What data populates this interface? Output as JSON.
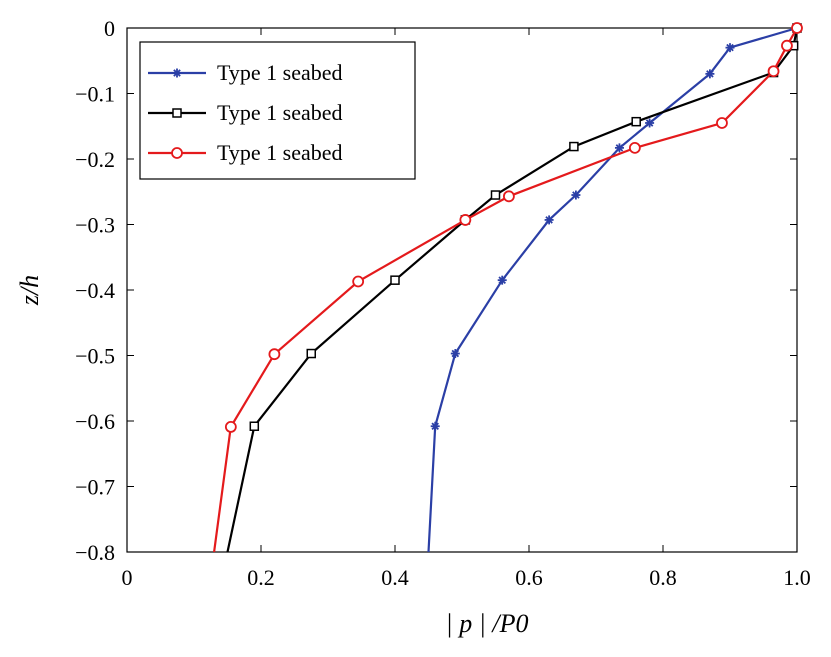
{
  "chart_data": {
    "type": "line",
    "xlabel": "| p | /P0",
    "ylabel": "z/h",
    "xlim": [
      0,
      1.0
    ],
    "ylim": [
      -0.8,
      0
    ],
    "x_ticks": [
      0,
      0.2,
      0.4,
      0.6,
      0.8,
      1.0
    ],
    "x_tick_labels": [
      "0",
      "0.2",
      "0.4",
      "0.6",
      "0.8",
      "1.0"
    ],
    "y_ticks": [
      0,
      -0.1,
      -0.2,
      -0.3,
      -0.4,
      -0.5,
      -0.6,
      -0.7,
      -0.8
    ],
    "y_tick_labels": [
      "0",
      "−0.1",
      "−0.2",
      "−0.3",
      "−0.4",
      "−0.5",
      "−0.6",
      "−0.7",
      "−0.8"
    ],
    "grid": false,
    "legend_position": "top-left",
    "series": [
      {
        "name": "Type 1 seabed",
        "color": "#2b3fa6",
        "marker": "asterisk",
        "x": [
          1.0,
          0.9,
          0.87,
          0.78,
          0.735,
          0.67,
          0.63,
          0.56,
          0.49,
          0.46,
          0.45
        ],
        "y": [
          0,
          -0.03,
          -0.07,
          -0.145,
          -0.183,
          -0.255,
          -0.293,
          -0.385,
          -0.497,
          -0.608,
          -0.8
        ],
        "markers": [
          true,
          true,
          true,
          true,
          true,
          true,
          true,
          true,
          true,
          true,
          false
        ]
      },
      {
        "name": "Type 1 seabed",
        "color": "#000000",
        "marker": "square",
        "x": [
          1.0,
          0.995,
          0.965,
          0.76,
          0.667,
          0.55,
          0.505,
          0.4,
          0.275,
          0.19,
          0.15
        ],
        "y": [
          0,
          -0.027,
          -0.068,
          -0.143,
          -0.181,
          -0.255,
          -0.293,
          -0.385,
          -0.497,
          -0.608,
          -0.8
        ],
        "markers": [
          true,
          true,
          true,
          true,
          true,
          true,
          true,
          true,
          true,
          true,
          false
        ]
      },
      {
        "name": "Type 1 seabed",
        "color": "#e41a1c",
        "marker": "circle",
        "x": [
          1.0,
          0.985,
          0.965,
          0.888,
          0.758,
          0.57,
          0.505,
          0.345,
          0.22,
          0.155,
          0.13
        ],
        "y": [
          0,
          -0.027,
          -0.066,
          -0.145,
          -0.183,
          -0.257,
          -0.293,
          -0.387,
          -0.498,
          -0.609,
          -0.8
        ],
        "markers": [
          true,
          true,
          true,
          true,
          true,
          true,
          true,
          true,
          true,
          true,
          false
        ]
      }
    ]
  }
}
